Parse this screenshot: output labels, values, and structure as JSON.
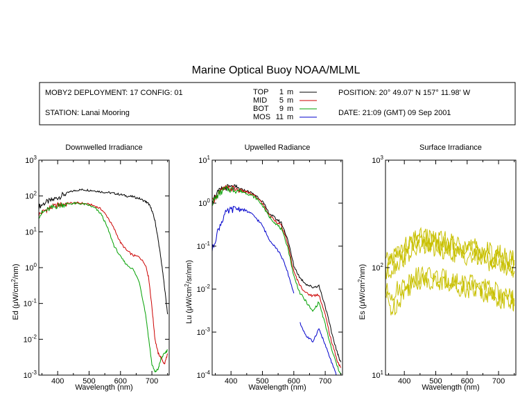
{
  "title": "Marine Optical Buoy NOAA/MLML",
  "info": {
    "deployment": "MOBY2 DEPLOYMENT: 17 CONFIG: 01",
    "station": "STATION: Lanai Mooring",
    "position": "POSITION: 20° 49.07' N   157° 11.98' W",
    "date": "DATE: 21:09 (GMT) 09 Sep 2001"
  },
  "legend": [
    {
      "name": "TOP",
      "depth": "1",
      "unit": "m",
      "color": "#000000"
    },
    {
      "name": "MID",
      "depth": "5",
      "unit": "m",
      "color": "#cc0000"
    },
    {
      "name": "BOT",
      "depth": "9",
      "unit": "m",
      "color": "#00a000"
    },
    {
      "name": "MOS",
      "depth": "11",
      "unit": "m",
      "color": "#0000cc"
    }
  ],
  "chart_data": [
    {
      "type": "line",
      "title": "Downwelled Irradiance",
      "xlabel": "Wavelength (nm)",
      "ylabel": "Ed",
      "yunit_prefix": "(μW/cm",
      "yunit_sup": "2",
      "yunit_suffix": "/nm)",
      "xlim": [
        340,
        755
      ],
      "ylim": [
        0.001,
        1000
      ],
      "yscale": "log",
      "xticks": [
        400,
        500,
        600,
        700
      ],
      "yticks": [
        {
          "value": 0.001,
          "base": "10",
          "exp": "-3"
        },
        {
          "value": 0.01,
          "base": "10",
          "exp": "-2"
        },
        {
          "value": 0.1,
          "base": "10",
          "exp": "-1"
        },
        {
          "value": 1,
          "base": "10",
          "exp": "0"
        },
        {
          "value": 10,
          "base": "10",
          "exp": "1"
        },
        {
          "value": 100,
          "base": "10",
          "exp": "2"
        },
        {
          "value": 1000,
          "base": "10",
          "exp": "3"
        }
      ],
      "series": [
        {
          "name": "TOP",
          "color": "#000000",
          "x": [
            340,
            360,
            380,
            400,
            420,
            440,
            460,
            480,
            500,
            520,
            540,
            560,
            580,
            600,
            620,
            640,
            660,
            680,
            690,
            700,
            710,
            720,
            730,
            740,
            750
          ],
          "y": [
            50,
            65,
            75,
            90,
            110,
            130,
            145,
            150,
            145,
            140,
            130,
            125,
            118,
            110,
            100,
            95,
            85,
            70,
            60,
            40,
            20,
            6,
            1.5,
            0.3,
            0.05
          ]
        },
        {
          "name": "MID",
          "color": "#cc0000",
          "x": [
            340,
            360,
            380,
            400,
            420,
            440,
            460,
            480,
            500,
            520,
            540,
            560,
            580,
            600,
            620,
            640,
            660,
            680,
            690,
            700,
            710,
            720,
            730,
            740,
            750
          ],
          "y": [
            30,
            40,
            48,
            55,
            60,
            63,
            64,
            62,
            58,
            52,
            42,
            25,
            12,
            5,
            3,
            2.2,
            2,
            1.2,
            0.5,
            0.08,
            0.01,
            0.004,
            0.003,
            0.002,
            0.004
          ]
        },
        {
          "name": "BOT",
          "color": "#00a000",
          "x": [
            340,
            360,
            380,
            400,
            420,
            440,
            460,
            480,
            500,
            520,
            540,
            560,
            580,
            600,
            620,
            640,
            660,
            680,
            690,
            700,
            710,
            720,
            730,
            740,
            750
          ],
          "y": [
            28,
            38,
            46,
            53,
            58,
            61,
            62,
            60,
            55,
            45,
            30,
            12,
            4,
            2,
            1.2,
            0.9,
            0.4,
            0.05,
            0.01,
            0.002,
            0.0012,
            0.0015,
            0.003,
            0.004,
            0.005
          ]
        }
      ]
    },
    {
      "type": "line",
      "title": "Upwelled Radiance",
      "xlabel": "Wavelength (nm)",
      "ylabel": "Lu",
      "yunit_prefix": "(μW/cm",
      "yunit_sup": "2",
      "yunit_suffix": "/sr/nm)",
      "xlim": [
        340,
        755
      ],
      "ylim": [
        0.0001,
        10
      ],
      "yscale": "log",
      "xticks": [
        400,
        500,
        600,
        700
      ],
      "yticks": [
        {
          "value": 0.0001,
          "base": "10",
          "exp": "-4"
        },
        {
          "value": 0.001,
          "base": "10",
          "exp": "-3"
        },
        {
          "value": 0.01,
          "base": "10",
          "exp": "-2"
        },
        {
          "value": 0.1,
          "base": "10",
          "exp": "-1"
        },
        {
          "value": 1,
          "base": "10",
          "exp": "0"
        },
        {
          "value": 10,
          "base": "10",
          "exp": "1"
        }
      ],
      "series": [
        {
          "name": "TOP",
          "color": "#000000",
          "x": [
            340,
            360,
            380,
            400,
            420,
            440,
            460,
            480,
            500,
            520,
            540,
            560,
            580,
            600,
            620,
            640,
            660,
            680,
            700,
            720,
            740,
            750
          ],
          "y": [
            1.2,
            1.8,
            2.3,
            2.3,
            2.2,
            2.0,
            1.8,
            1.5,
            1.1,
            0.6,
            0.45,
            0.35,
            0.15,
            0.035,
            0.018,
            0.013,
            0.011,
            0.012,
            0.004,
            0.001,
            0.0003,
            0.0002
          ]
        },
        {
          "name": "MID",
          "color": "#cc0000",
          "x": [
            340,
            360,
            380,
            400,
            420,
            440,
            460,
            480,
            500,
            520,
            540,
            560,
            580,
            600,
            620,
            640,
            660,
            680,
            700,
            720,
            740,
            750
          ],
          "y": [
            1.1,
            1.7,
            2.2,
            2.2,
            2.1,
            1.9,
            1.7,
            1.4,
            1.0,
            0.55,
            0.4,
            0.3,
            0.12,
            0.025,
            0.012,
            0.008,
            0.007,
            0.0075,
            0.0025,
            0.0006,
            0.0002,
            0.00015
          ]
        },
        {
          "name": "BOT",
          "color": "#00a000",
          "x": [
            340,
            360,
            380,
            400,
            420,
            440,
            460,
            480,
            500,
            520,
            540,
            560,
            580,
            600,
            620,
            640,
            660,
            680,
            700,
            720,
            740,
            750
          ],
          "y": [
            1.0,
            1.6,
            2.1,
            2.1,
            2.0,
            1.8,
            1.6,
            1.3,
            0.9,
            0.5,
            0.35,
            0.25,
            0.1,
            0.02,
            0.008,
            0.005,
            0.003,
            0.005,
            0.0015,
            0.0004,
            0.00015,
            0.0001
          ]
        },
        {
          "name": "MOS",
          "color": "#0000cc",
          "x": [
            340,
            360,
            380,
            400,
            420,
            440,
            460,
            480,
            500,
            520,
            540,
            560,
            580,
            600
          ],
          "y": [
            0.08,
            0.25,
            0.55,
            0.7,
            0.75,
            0.7,
            0.6,
            0.45,
            0.3,
            0.15,
            0.1,
            0.06,
            0.025,
            0.008
          ]
        },
        {
          "name": "MOS",
          "color": "#0000cc",
          "x": [
            620,
            640,
            660,
            680,
            700,
            720,
            735
          ],
          "y": [
            0.0016,
            0.0008,
            0.0006,
            0.0012,
            0.0005,
            0.0002,
            0.0001
          ]
        }
      ]
    },
    {
      "type": "line",
      "title": "Surface Irradiance",
      "xlabel": "Wavelength (nm)",
      "ylabel": "Es",
      "yunit_prefix": "(μW/cm",
      "yunit_sup": "2",
      "yunit_suffix": "/nm)",
      "xlim": [
        340,
        755
      ],
      "ylim": [
        10,
        1000
      ],
      "yscale": "log",
      "xticks": [
        400,
        500,
        600,
        700
      ],
      "yticks": [
        {
          "value": 10,
          "base": "10",
          "exp": "1"
        },
        {
          "value": 100,
          "base": "10",
          "exp": "2"
        },
        {
          "value": 1000,
          "base": "10",
          "exp": "3"
        }
      ],
      "series": [
        {
          "name": "Es1",
          "color": "#c8c000",
          "x": [
            340,
            360,
            380,
            400,
            420,
            440,
            460,
            480,
            500,
            520,
            540,
            560,
            580,
            600,
            620,
            640,
            660,
            680,
            700,
            720,
            740,
            750
          ],
          "y": [
            110,
            125,
            140,
            155,
            170,
            185,
            195,
            190,
            185,
            180,
            175,
            170,
            165,
            160,
            155,
            150,
            145,
            140,
            135,
            128,
            120,
            118
          ]
        },
        {
          "name": "Es2",
          "color": "#c8c000",
          "x": [
            340,
            360,
            380,
            400,
            420,
            440,
            460,
            480,
            500,
            520,
            540,
            560,
            580,
            600,
            620,
            640,
            660,
            680,
            700,
            720,
            740,
            750
          ],
          "y": [
            95,
            110,
            125,
            140,
            155,
            165,
            175,
            170,
            165,
            160,
            155,
            150,
            148,
            145,
            140,
            135,
            130,
            125,
            120,
            115,
            108,
            105
          ]
        },
        {
          "name": "Es3",
          "color": "#c8c000",
          "x": [
            340,
            360,
            380,
            400,
            420,
            440,
            460,
            480,
            500,
            520,
            540,
            560,
            580,
            600,
            620,
            640,
            660,
            680,
            700,
            720,
            740,
            750
          ],
          "y": [
            85,
            98,
            112,
            125,
            138,
            148,
            158,
            155,
            150,
            145,
            140,
            136,
            132,
            128,
            124,
            120,
            116,
            112,
            108,
            102,
            96,
            93
          ]
        },
        {
          "name": "Es4",
          "color": "#c8c000",
          "x": [
            340,
            360,
            380,
            400,
            420,
            440,
            460,
            480,
            500,
            520,
            540,
            560,
            580,
            600,
            620,
            640,
            660,
            680,
            700,
            720,
            740,
            750
          ],
          "y": [
            60,
            58,
            62,
            70,
            78,
            83,
            86,
            84,
            82,
            80,
            78,
            76,
            74,
            72,
            70,
            67,
            64,
            62,
            58,
            55,
            52,
            50
          ]
        },
        {
          "name": "Es5",
          "color": "#c8c000",
          "x": [
            340,
            360,
            380,
            400,
            420,
            440,
            460,
            480,
            500,
            520,
            540,
            560,
            580,
            600,
            620,
            640,
            660,
            680,
            700,
            720,
            740,
            750
          ],
          "y": [
            55,
            40,
            48,
            60,
            68,
            74,
            78,
            76,
            74,
            72,
            70,
            68,
            66,
            64,
            62,
            60,
            57,
            55,
            52,
            48,
            45,
            44
          ]
        }
      ]
    }
  ]
}
